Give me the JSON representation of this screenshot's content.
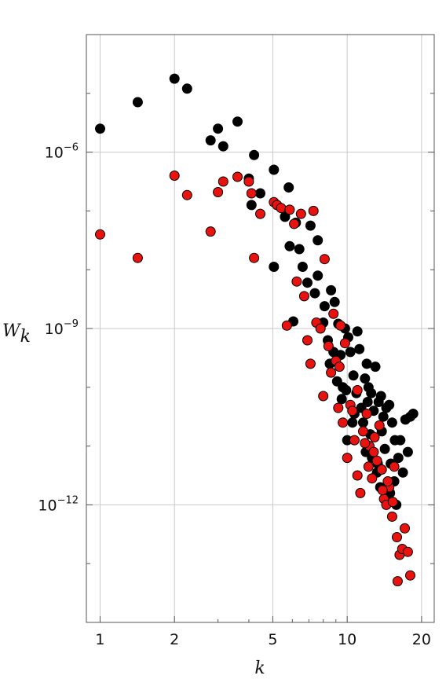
{
  "chart_data": {
    "type": "scatter",
    "xlabel": "k",
    "ylabel_main": "W",
    "ylabel_sub": "k",
    "x_scale": "log",
    "y_scale": "log",
    "xlim": [
      0.88,
      22.5
    ],
    "ylim_log10": [
      -14.0,
      -4.0
    ],
    "x_ticks": [
      1,
      2,
      5,
      10,
      20
    ],
    "x_tick_labels": [
      "1",
      "2",
      "5",
      "10",
      "20"
    ],
    "y_ticks_log10": [
      -6,
      -9,
      -12
    ],
    "y_tick_labels": [
      {
        "base": "10",
        "exp": "-6"
      },
      {
        "base": "10",
        "exp": "-9"
      },
      {
        "base": "10",
        "exp": "-12"
      }
    ],
    "grid": true,
    "series": [
      {
        "color": "#000000",
        "points": [
          [
            1.0,
            -5.6
          ],
          [
            1.42,
            -5.15
          ],
          [
            2.0,
            -4.75
          ],
          [
            2.25,
            -4.92
          ],
          [
            2.8,
            -5.8
          ],
          [
            3.0,
            -5.6
          ],
          [
            3.15,
            -5.9
          ],
          [
            3.6,
            -5.48
          ],
          [
            4.0,
            -6.45
          ],
          [
            4.1,
            -6.9
          ],
          [
            4.2,
            -6.05
          ],
          [
            4.45,
            -6.7
          ],
          [
            5.05,
            -6.3
          ],
          [
            5.05,
            -7.95
          ],
          [
            5.6,
            -7.1
          ],
          [
            5.8,
            -6.6
          ],
          [
            5.85,
            -7.6
          ],
          [
            6.05,
            -8.88
          ],
          [
            6.2,
            -7.2
          ],
          [
            6.4,
            -7.65
          ],
          [
            6.6,
            -7.95
          ],
          [
            6.9,
            -8.22
          ],
          [
            7.1,
            -7.25
          ],
          [
            7.4,
            -8.4
          ],
          [
            7.6,
            -7.5
          ],
          [
            7.6,
            -8.1
          ],
          [
            8.0,
            -8.9
          ],
          [
            8.1,
            -8.62
          ],
          [
            8.35,
            -9.2
          ],
          [
            8.5,
            -9.6
          ],
          [
            8.6,
            -8.35
          ],
          [
            8.8,
            -9.4
          ],
          [
            8.9,
            -8.55
          ],
          [
            9.1,
            -9.9
          ],
          [
            9.2,
            -8.92
          ],
          [
            9.4,
            -9.45
          ],
          [
            9.5,
            -10.2
          ],
          [
            9.8,
            -9.0
          ],
          [
            9.9,
            -10.05
          ],
          [
            10.0,
            -10.9
          ],
          [
            10.1,
            -9.15
          ],
          [
            10.3,
            -9.4
          ],
          [
            10.5,
            -10.6
          ],
          [
            10.6,
            -9.8
          ],
          [
            10.9,
            -10.1
          ],
          [
            11.0,
            -9.05
          ],
          [
            11.2,
            -9.35
          ],
          [
            11.4,
            -10.35
          ],
          [
            11.6,
            -10.6
          ],
          [
            11.9,
            -11.1
          ],
          [
            12.0,
            -9.6
          ],
          [
            12.2,
            -10.0
          ],
          [
            12.4,
            -10.8
          ],
          [
            12.6,
            -11.2
          ],
          [
            12.8,
            -10.4
          ],
          [
            13.0,
            -9.65
          ],
          [
            13.2,
            -11.45
          ],
          [
            13.4,
            -10.25
          ],
          [
            13.6,
            -11.7
          ],
          [
            13.8,
            -10.75
          ],
          [
            14.0,
            -10.5
          ],
          [
            14.2,
            -11.05
          ],
          [
            14.5,
            -11.95
          ],
          [
            14.8,
            -10.3
          ],
          [
            15.0,
            -11.3
          ],
          [
            15.2,
            -10.6
          ],
          [
            15.5,
            -11.6
          ],
          [
            15.8,
            -12.0
          ],
          [
            16.1,
            -11.2
          ],
          [
            16.4,
            -10.9
          ],
          [
            16.8,
            -11.45
          ],
          [
            17.2,
            -10.55
          ],
          [
            17.6,
            -11.1
          ],
          [
            18.0,
            -10.5
          ],
          [
            18.5,
            -10.45
          ],
          [
            12.5,
            -10.1
          ],
          [
            11.8,
            -9.85
          ],
          [
            13.7,
            -10.15
          ],
          [
            14.4,
            -10.35
          ],
          [
            12.1,
            -10.25
          ],
          [
            10.7,
            -10.45
          ],
          [
            9.6,
            -10.0
          ],
          [
            15.6,
            -10.9
          ],
          [
            13.3,
            -11.3
          ],
          [
            14.9,
            -11.8
          ]
        ]
      },
      {
        "color": "#e8120f",
        "points": [
          [
            1.0,
            -7.4
          ],
          [
            1.42,
            -7.8
          ],
          [
            2.0,
            -6.4
          ],
          [
            2.25,
            -6.73
          ],
          [
            2.8,
            -7.35
          ],
          [
            3.0,
            -6.68
          ],
          [
            3.15,
            -6.5
          ],
          [
            3.6,
            -6.42
          ],
          [
            4.0,
            -6.5
          ],
          [
            4.1,
            -6.7
          ],
          [
            4.2,
            -7.8
          ],
          [
            4.45,
            -7.05
          ],
          [
            5.05,
            -6.85
          ],
          [
            5.2,
            -6.9
          ],
          [
            5.4,
            -6.95
          ],
          [
            5.7,
            -8.95
          ],
          [
            5.85,
            -6.98
          ],
          [
            6.1,
            -7.22
          ],
          [
            6.25,
            -8.2
          ],
          [
            6.5,
            -7.05
          ],
          [
            6.7,
            -8.45
          ],
          [
            6.9,
            -9.2
          ],
          [
            7.1,
            -9.6
          ],
          [
            7.3,
            -7.0
          ],
          [
            7.5,
            -8.9
          ],
          [
            7.8,
            -9.0
          ],
          [
            8.0,
            -10.15
          ],
          [
            8.1,
            -7.82
          ],
          [
            8.4,
            -9.3
          ],
          [
            8.6,
            -9.75
          ],
          [
            8.8,
            -8.75
          ],
          [
            9.0,
            -9.55
          ],
          [
            9.2,
            -10.35
          ],
          [
            9.4,
            -8.95
          ],
          [
            9.6,
            -10.6
          ],
          [
            9.8,
            -9.25
          ],
          [
            10.0,
            -11.2
          ],
          [
            10.3,
            -10.3
          ],
          [
            10.7,
            -10.9
          ],
          [
            11.0,
            -11.5
          ],
          [
            11.3,
            -11.8
          ],
          [
            11.6,
            -10.75
          ],
          [
            12.0,
            -10.45
          ],
          [
            12.3,
            -11.0
          ],
          [
            12.6,
            -11.55
          ],
          [
            12.9,
            -10.85
          ],
          [
            13.2,
            -11.25
          ],
          [
            13.5,
            -10.65
          ],
          [
            13.8,
            -11.4
          ],
          [
            14.1,
            -11.9
          ],
          [
            14.4,
            -12.0
          ],
          [
            14.8,
            -11.7
          ],
          [
            15.2,
            -12.2
          ],
          [
            15.5,
            -11.35
          ],
          [
            15.9,
            -12.55
          ],
          [
            16.3,
            -12.85
          ],
          [
            16.7,
            -12.75
          ],
          [
            17.1,
            -12.4
          ],
          [
            17.6,
            -12.8
          ],
          [
            18.0,
            -13.2
          ],
          [
            16.0,
            -13.3
          ],
          [
            14.6,
            -11.6
          ],
          [
            12.8,
            -11.1
          ],
          [
            11.8,
            -10.95
          ],
          [
            10.5,
            -10.4
          ],
          [
            13.9,
            -11.75
          ],
          [
            15.3,
            -11.95
          ],
          [
            12.2,
            -11.35
          ],
          [
            11.0,
            -10.05
          ],
          [
            9.3,
            -9.65
          ]
        ]
      }
    ]
  }
}
